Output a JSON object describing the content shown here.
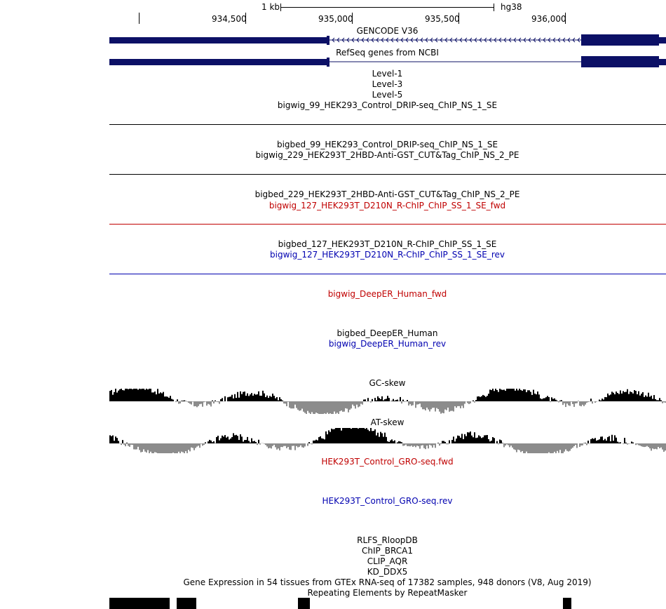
{
  "ruler": {
    "scale_label": "1 kb",
    "assembly": "hg38",
    "positions": [
      "934,500",
      "935,000",
      "935,500",
      "936,000"
    ]
  },
  "tracks": {
    "gencode": "GENCODE V36",
    "refseq": "RefSeq genes from NCBI",
    "level1": "Level-1",
    "level3": "Level-3",
    "level5": "Level-5",
    "bigwig_99": "bigwig_99_HEK293_Control_DRIP-seq_ChIP_NS_1_SE",
    "bigbed_99": "bigbed_99_HEK293_Control_DRIP-seq_ChIP_NS_1_SE",
    "bigwig_229": "bigwig_229_HEK293T_2HBD-Anti-GST_CUT&Tag_ChIP_NS_2_PE",
    "bigbed_229": "bigbed_229_HEK293T_2HBD-Anti-GST_CUT&Tag_ChIP_NS_2_PE",
    "bigwig_127_fwd": "bigwig_127_HEK293T_D210N_R-ChIP_ChIP_SS_1_SE_fwd",
    "bigbed_127": "bigbed_127_HEK293T_D210N_R-ChIP_ChIP_SS_1_SE",
    "bigwig_127_rev": "bigwig_127_HEK293T_D210N_R-ChIP_ChIP_SS_1_SE_rev",
    "deeper_fwd": "bigwig_DeepER_Human_fwd",
    "deeper_bed": "bigbed_DeepER_Human",
    "deeper_rev": "bigwig_DeepER_Human_rev",
    "gc_skew": "GC-skew",
    "at_skew": "AT-skew",
    "gro_fwd": "HEK293T_Control_GRO-seq.fwd",
    "gro_rev": "HEK293T_Control_GRO-seq.rev",
    "rlfs": "RLFS_RloopDB",
    "chip_brca1": "ChIP_BRCA1",
    "clip_aqr": "CLIP_AQR",
    "kd_ddx5": "KD_DDX5",
    "gtex": "Gene Expression in 54 tissues from GTEx RNA-seq of 17382 samples, 948 donors (V8, Aug 2019)",
    "repeatmasker": "Repeating Elements by RepeatMasker"
  },
  "colors": {
    "gene": "#0c1066",
    "fwd": "#c00000",
    "rev": "#0000b0",
    "skew_pos": "#000000",
    "skew_neg": "#8c8c8c"
  }
}
